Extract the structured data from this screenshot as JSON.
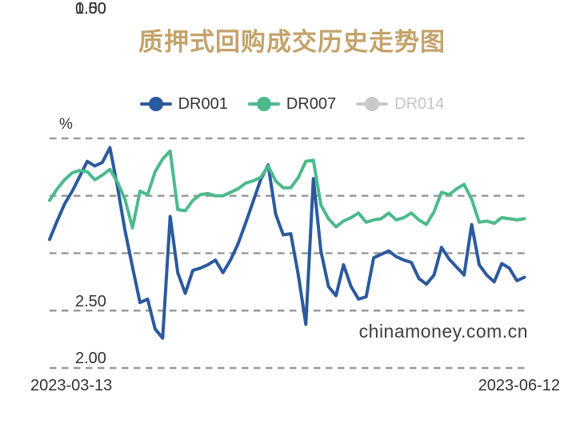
{
  "title": "质押式回购成交历史走势图",
  "legend": [
    {
      "label": "DR001",
      "color": "#2B5A9D",
      "enabled": true
    },
    {
      "label": "DR007",
      "color": "#4CBA8C",
      "enabled": true
    },
    {
      "label": "DR014",
      "color": "#C9C9C9",
      "enabled": false
    }
  ],
  "y_axis": {
    "unit": "%",
    "ticks": [
      "2.50",
      "2.00",
      "1.50",
      "1.00",
      "0.50"
    ]
  },
  "x_axis": {
    "start_label": "2023-03-13",
    "end_label": "2023-06-12"
  },
  "watermark": "chinamoney.com.cn",
  "colors": {
    "title": "#C3A36B",
    "legend_text": "#333333",
    "disabled_text": "#C6C6C6",
    "grid": "#999999",
    "axis_text": "#333333"
  },
  "chart_data": {
    "type": "line",
    "title": "质押式回购成交历史走势图",
    "ylabel": "%",
    "x_range": [
      "2023-03-13",
      "2023-06-12"
    ],
    "ylim": [
      0.5,
      2.5
    ],
    "y_ticks": [
      2.5,
      2.0,
      1.5,
      1.0,
      0.5
    ],
    "grid": "horizontal-dashed",
    "legend_position": "top",
    "series": [
      {
        "name": "DR001",
        "color": "#2B5A9D",
        "visible": true,
        "values": [
          1.62,
          1.78,
          1.93,
          2.04,
          2.17,
          2.3,
          2.26,
          2.29,
          2.42,
          2.08,
          1.7,
          1.38,
          1.07,
          1.1,
          0.84,
          0.76,
          1.82,
          1.33,
          1.15,
          1.35,
          1.37,
          1.4,
          1.44,
          1.33,
          1.44,
          1.58,
          1.76,
          1.95,
          2.14,
          2.27,
          1.84,
          1.66,
          1.67,
          1.31,
          0.88,
          2.15,
          1.52,
          1.21,
          1.13,
          1.4,
          1.21,
          1.1,
          1.12,
          1.46,
          1.49,
          1.52,
          1.47,
          1.44,
          1.42,
          1.28,
          1.23,
          1.31,
          1.55,
          1.45,
          1.38,
          1.31,
          1.75,
          1.4,
          1.31,
          1.25,
          1.41,
          1.37,
          1.26,
          1.29
        ]
      },
      {
        "name": "DR007",
        "color": "#4CBA8C",
        "visible": true,
        "values": [
          1.96,
          2.06,
          2.14,
          2.2,
          2.22,
          2.21,
          2.14,
          2.18,
          2.23,
          2.12,
          1.97,
          1.72,
          2.04,
          2.01,
          2.21,
          2.32,
          2.39,
          1.88,
          1.87,
          1.96,
          2.01,
          2.02,
          2.0,
          2.0,
          2.03,
          2.06,
          2.11,
          2.13,
          2.16,
          2.26,
          2.13,
          2.07,
          2.07,
          2.16,
          2.3,
          2.31,
          1.92,
          1.8,
          1.73,
          1.78,
          1.81,
          1.85,
          1.77,
          1.79,
          1.8,
          1.85,
          1.79,
          1.81,
          1.85,
          1.79,
          1.75,
          1.86,
          2.03,
          2.01,
          2.06,
          2.1,
          1.97,
          1.77,
          1.78,
          1.76,
          1.81,
          1.8,
          1.79,
          1.8
        ]
      },
      {
        "name": "DR014",
        "color": "#C9C9C9",
        "visible": false,
        "values": []
      }
    ]
  }
}
